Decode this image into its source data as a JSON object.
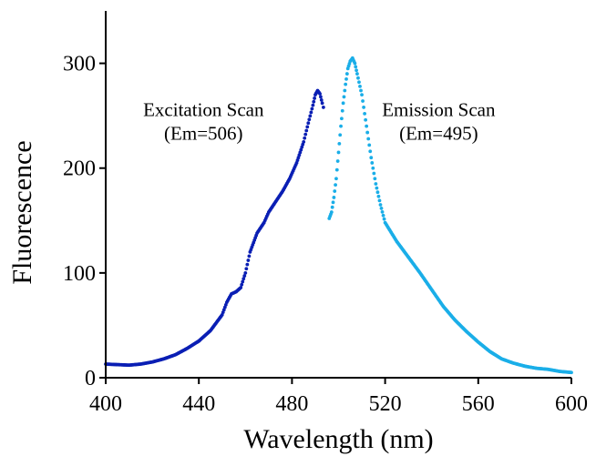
{
  "chart_data": {
    "type": "scatter",
    "title": "",
    "xlabel": "Wavelength (nm)",
    "ylabel": "Fluorescence",
    "xlim": [
      400,
      600
    ],
    "ylim": [
      0,
      350
    ],
    "x_ticks": [
      400,
      440,
      480,
      520,
      560,
      600
    ],
    "y_ticks": [
      0,
      100,
      200,
      300
    ],
    "x_tick_labels": [
      "400",
      "440",
      "480",
      "520",
      "560",
      "600"
    ],
    "y_tick_labels": [
      "0",
      "100",
      "200",
      "300"
    ],
    "grid": false,
    "legend": "none",
    "annotations": [
      {
        "line1": "Excitation Scan",
        "line2": "(Em=506)",
        "anchor_x": 442,
        "anchor_y": 220
      },
      {
        "line1": "Emission Scan",
        "line2": "(Em=495)",
        "anchor_x": 543,
        "anchor_y": 220
      }
    ],
    "series": [
      {
        "color": "#0a1fb4",
        "points": [
          [
            400,
            13
          ],
          [
            405,
            12.5
          ],
          [
            410,
            12
          ],
          [
            415,
            13
          ],
          [
            420,
            15
          ],
          [
            425,
            18
          ],
          [
            430,
            22
          ],
          [
            435,
            28
          ],
          [
            440,
            35
          ],
          [
            445,
            45
          ],
          [
            450,
            60
          ],
          [
            452,
            72
          ],
          [
            454,
            80
          ],
          [
            456,
            82
          ],
          [
            458,
            86
          ],
          [
            460,
            100
          ],
          [
            462,
            120
          ],
          [
            465,
            138
          ],
          [
            468,
            148
          ],
          [
            470,
            158
          ],
          [
            473,
            168
          ],
          [
            476,
            178
          ],
          [
            479,
            190
          ],
          [
            482,
            205
          ],
          [
            485,
            225
          ],
          [
            487,
            243
          ],
          [
            489,
            260
          ],
          [
            490,
            270
          ],
          [
            491,
            274
          ],
          [
            492,
            271
          ],
          [
            493,
            262
          ],
          [
            493.5,
            258
          ]
        ]
      },
      {
        "color": "#1aaee8",
        "points": [
          [
            496,
            152
          ],
          [
            497,
            158
          ],
          [
            498,
            172
          ],
          [
            499,
            190
          ],
          [
            500,
            215
          ],
          [
            501,
            240
          ],
          [
            502,
            262
          ],
          [
            503,
            280
          ],
          [
            504,
            295
          ],
          [
            505,
            302
          ],
          [
            506,
            305
          ],
          [
            507,
            300
          ],
          [
            508,
            290
          ],
          [
            510,
            270
          ],
          [
            512,
            240
          ],
          [
            514,
            210
          ],
          [
            516,
            185
          ],
          [
            518,
            165
          ],
          [
            520,
            148
          ],
          [
            525,
            130
          ],
          [
            530,
            115
          ],
          [
            535,
            100
          ],
          [
            540,
            84
          ],
          [
            545,
            68
          ],
          [
            550,
            55
          ],
          [
            555,
            44
          ],
          [
            560,
            34
          ],
          [
            565,
            25
          ],
          [
            570,
            18
          ],
          [
            575,
            14
          ],
          [
            580,
            11
          ],
          [
            585,
            9
          ],
          [
            590,
            8
          ],
          [
            595,
            6
          ],
          [
            600,
            5
          ]
        ]
      }
    ]
  }
}
